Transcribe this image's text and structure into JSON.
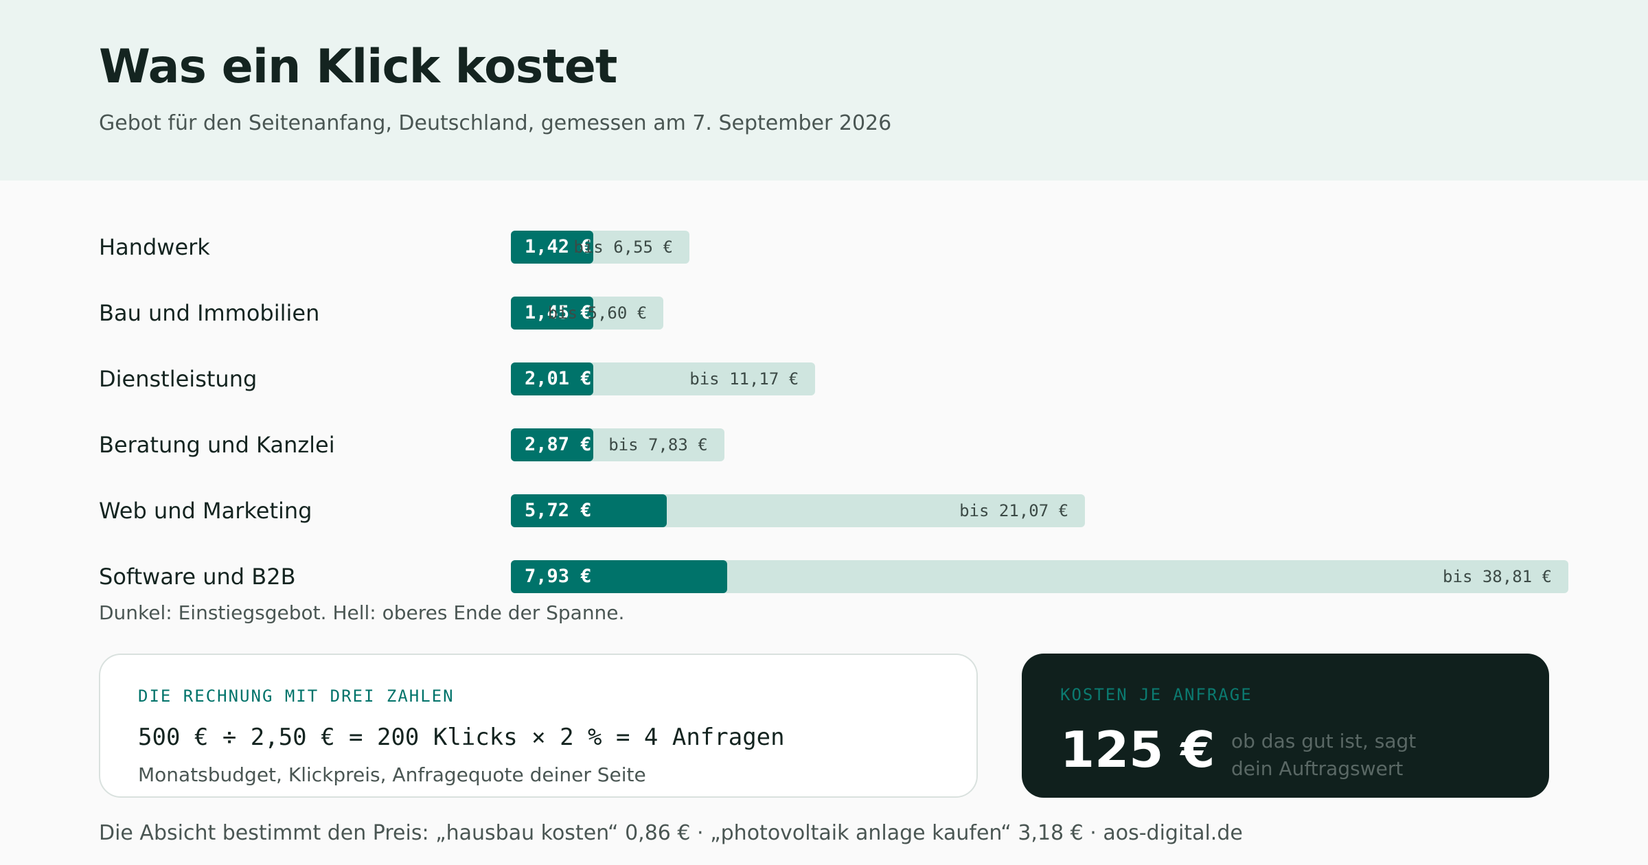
{
  "header": {
    "title": "Was ein Klick kostet",
    "subtitle": "Gebot für den Seitenanfang, Deutschland, gemessen am 7. September 2026"
  },
  "chart_data": {
    "type": "bar",
    "orientation": "horizontal",
    "title": "Was ein Klick kostet",
    "subtitle": "Gebot für den Seitenanfang, Deutschland, gemessen am 7. September 2026",
    "categories": [
      "Handwerk",
      "Bau und Immobilien",
      "Dienstleistung",
      "Beratung und Kanzlei",
      "Web und Marketing",
      "Software und B2B"
    ],
    "series": [
      {
        "name": "Einstiegsgebot",
        "values": [
          1.42,
          1.45,
          2.01,
          2.87,
          5.72,
          7.93
        ]
      },
      {
        "name": "oberes Ende der Spanne",
        "values": [
          6.55,
          5.6,
          11.17,
          7.83,
          21.07,
          38.81
        ]
      }
    ],
    "entry_labels": [
      "1,42 €",
      "1,45 €",
      "2,01 €",
      "2,87 €",
      "5,72 €",
      "7,93 €"
    ],
    "max_labels": [
      "bis 6,55 €",
      "bis 5,60 €",
      "bis 11,17 €",
      "bis 7,83 €",
      "bis 21,07 €",
      "bis 38,81 €"
    ],
    "xlim": [
      0,
      38.81
    ],
    "colors": {
      "entry": "#00736a",
      "max": "#cfe5df"
    },
    "legend_note": "Dunkel: Einstiegsgebot. Hell: oberes Ende der Spanne.",
    "grid": false
  },
  "calc": {
    "heading": "DIE RECHNUNG MIT DREI ZAHLEN",
    "formula": "500 € ÷ 2,50 € = 200 Klicks × 2 % = 4 Anfragen",
    "caption": "Monatsbudget, Klickpreis, Anfragequote deiner Seite"
  },
  "cost": {
    "heading": "KOSTEN JE ANFRAGE",
    "value": "125 €",
    "note": "ob das gut ist, sagt dein Auftragswert"
  },
  "footer": {
    "text": "Die Absicht bestimmt den Preis: „hausbau kosten“ 0,86 € · „photovoltaik anlage kaufen“ 3,18 € · aos-digital.de"
  }
}
